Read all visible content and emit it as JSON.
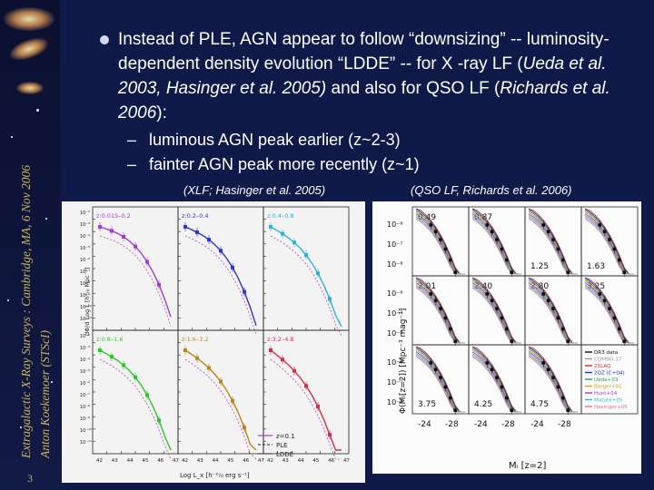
{
  "sidebar": {
    "vertical_text_line1": "Extragalactic X-Ray Surveys : Cambridge, MA, 6 Nov 2006",
    "vertical_text_line2": "Anton Koekemoer (STScI)",
    "slide_number": "3"
  },
  "bullet": {
    "text_plain_1": "Instead of PLE, AGN appear to follow “downsizing” -- luminosity-dependent density evolution “LDDE” -- for X -ray LF (",
    "text_italic_1": "Ueda et al. 2003, Hasinger et al. 2005)",
    "text_plain_2": " and also for QSO LF (",
    "text_italic_2": "Richards et al. 2006",
    "text_plain_3": "):"
  },
  "sub_items": [
    {
      "dash": "–",
      "text": "luminous AGN peak earlier (z~2-3)"
    },
    {
      "dash": "–",
      "text": "fainter AGN peak more recently (z~1)"
    }
  ],
  "captions": {
    "left": "(XLF; Hasinger et al. 2005)",
    "right": "(QSO LF, Richards et al. 2006)"
  },
  "xlf_figure": {
    "ylabel": "dΦ/d Log L [h³₇₀ Mpc⁻³]",
    "xlabel": "Log L_x [h⁻²₇₀ erg s⁻¹]",
    "panels": [
      {
        "label": "z:0.015–0.2",
        "color": "#9c3fd0"
      },
      {
        "label": "z:0.2–0.4",
        "color": "#2d36c9"
      },
      {
        "label": "z:0.4–0.8",
        "color": "#2ab4d6"
      },
      {
        "label": "z:0.8–1.6",
        "color": "#2cc52c"
      },
      {
        "label": "z:1.6–3.2",
        "color": "#b8861b"
      },
      {
        "label": "z:3.2–4.8",
        "color": "#d2304a"
      }
    ],
    "legend": [
      "z=0.1",
      "PLE",
      "LDDE"
    ],
    "y_ticks": [
      "10⁻²",
      "10⁻³",
      "10⁻⁴",
      "10⁻⁵",
      "10⁻⁶",
      "10⁻⁷",
      "10⁻⁸",
      "10⁻⁹",
      "10⁻¹⁰",
      "10⁻¹¹"
    ],
    "x_ticks": [
      "42",
      "43",
      "44",
      "45",
      "46",
      "47"
    ]
  },
  "qso_figure": {
    "ylabel": "Φ(Mᵢ[z=2]) [Mpc⁻³ mag⁻¹]",
    "xlabel": "Mᵢ [z=2]",
    "panel_redshifts": [
      "0.49",
      "0.87",
      "1.25",
      "1.63",
      "2.01",
      "2.40",
      "2.80",
      "3.25",
      "3.75",
      "4.25",
      "4.75"
    ],
    "y_ticks": [
      "10⁻⁶",
      "10⁻⁷",
      "10⁻⁸"
    ],
    "x_ticks": [
      "-24",
      "-28"
    ],
    "legend": [
      {
        "label": "DR3 data",
        "color": "#111111"
      },
      {
        "label": "COMBO-17",
        "color": "#9a9a9a"
      },
      {
        "label": "2SLAQ",
        "color": "#d03030"
      },
      {
        "label": "2QZ (C+04)",
        "color": "#2030c0"
      },
      {
        "label": "Ueda+03",
        "color": "#2aa040"
      },
      {
        "label": "Barger+05",
        "color": "#d8a020"
      },
      {
        "label": "Hunt+04",
        "color": "#a040c0"
      },
      {
        "label": "Matute+05",
        "color": "#30b8d8"
      },
      {
        "label": "Hasinger+05",
        "color": "#e070a0"
      }
    ]
  }
}
